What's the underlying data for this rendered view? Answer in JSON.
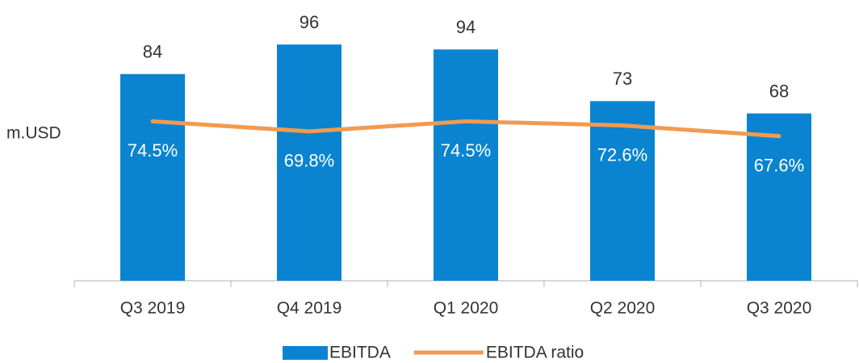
{
  "chart_data": {
    "type": "bar_line",
    "y_label": "m.USD",
    "categories": [
      "Q3 2019",
      "Q4 2019",
      "Q1 2020",
      "Q2 2020",
      "Q3 2020"
    ],
    "series": [
      {
        "name": "EBITDA",
        "type": "bar",
        "color": "#0a84d0",
        "values": [
          84,
          96,
          94,
          73,
          68
        ]
      },
      {
        "name": "EBITDA ratio",
        "type": "line",
        "axis": "y2",
        "color": "#f39a4f",
        "values": [
          74.5,
          69.8,
          74.5,
          72.6,
          67.6
        ],
        "value_labels": [
          "74.5%",
          "69.8%",
          "74.5%",
          "72.6%",
          "67.6%"
        ]
      }
    ],
    "ylim": [
      0,
      100
    ],
    "y2lim": [
      0,
      115
    ],
    "legend": "bottom"
  }
}
